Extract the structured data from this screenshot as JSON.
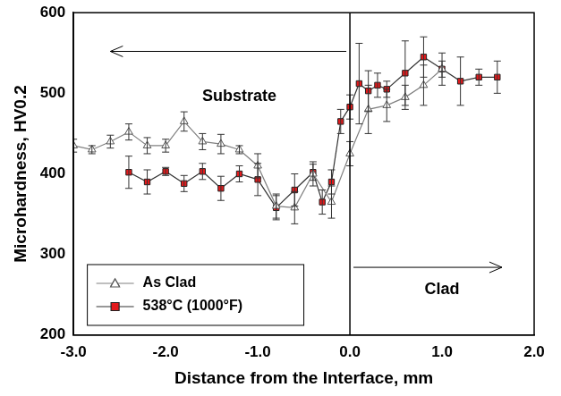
{
  "chart_data": {
    "type": "line",
    "x_label": "Distance from the Interface, mm",
    "y_label": "Microhardness, HV0.2",
    "xlim": [
      -3,
      2
    ],
    "xticks": [
      {
        "value": -3,
        "label": "-3.0"
      },
      {
        "value": -2,
        "label": "-2.0"
      },
      {
        "value": -1,
        "label": "-1.0"
      },
      {
        "value": 0,
        "label": "0.0"
      },
      {
        "value": 1,
        "label": "1.0"
      },
      {
        "value": 2,
        "label": "2.0"
      }
    ],
    "ylim": [
      200,
      600
    ],
    "yticks": [
      200,
      300,
      400,
      500,
      600
    ],
    "grid": false,
    "legend": "lower left",
    "series": [
      {
        "name": "As Clad",
        "color": "#808080",
        "marker": "triangle",
        "x": [
          -3.0,
          -2.8,
          -2.6,
          -2.4,
          -2.2,
          -2.0,
          -1.8,
          -1.6,
          -1.4,
          -1.2,
          -1.0,
          -0.8,
          -0.6,
          -0.4,
          -0.2,
          0.0,
          0.2,
          0.4,
          0.6,
          0.8,
          1.0
        ],
        "values": [
          435,
          430,
          440,
          452,
          435,
          435,
          465,
          440,
          437,
          430,
          410,
          360,
          358,
          400,
          365,
          425,
          480,
          485,
          495,
          510,
          530
        ],
        "errors": [
          8,
          5,
          8,
          10,
          10,
          8,
          12,
          10,
          12,
          5,
          15,
          15,
          20,
          15,
          20,
          15,
          30,
          20,
          15,
          25,
          20
        ]
      },
      {
        "name": "538°C (1000°F)",
        "color": "#e31a1c",
        "marker": "square",
        "x": [
          -2.4,
          -2.2,
          -2.0,
          -1.8,
          -1.6,
          -1.4,
          -1.2,
          -1.0,
          -0.8,
          -0.6,
          -0.4,
          -0.3,
          -0.2,
          -0.1,
          0.0,
          0.1,
          0.2,
          0.3,
          0.4,
          0.6,
          0.8,
          1.0,
          1.2,
          1.4,
          1.6
        ],
        "values": [
          402,
          390,
          403,
          388,
          403,
          382,
          400,
          393,
          358,
          380,
          402,
          365,
          390,
          465,
          483,
          512,
          503,
          510,
          505,
          525,
          545,
          530,
          515,
          520,
          520
        ],
        "errors": [
          20,
          15,
          5,
          10,
          10,
          15,
          10,
          20,
          15,
          20,
          10,
          15,
          15,
          15,
          15,
          50,
          25,
          15,
          10,
          40,
          25,
          10,
          30,
          10,
          20
        ]
      }
    ],
    "annotations": [
      "Substrate",
      "Clad"
    ],
    "vlines": [
      0
    ]
  }
}
